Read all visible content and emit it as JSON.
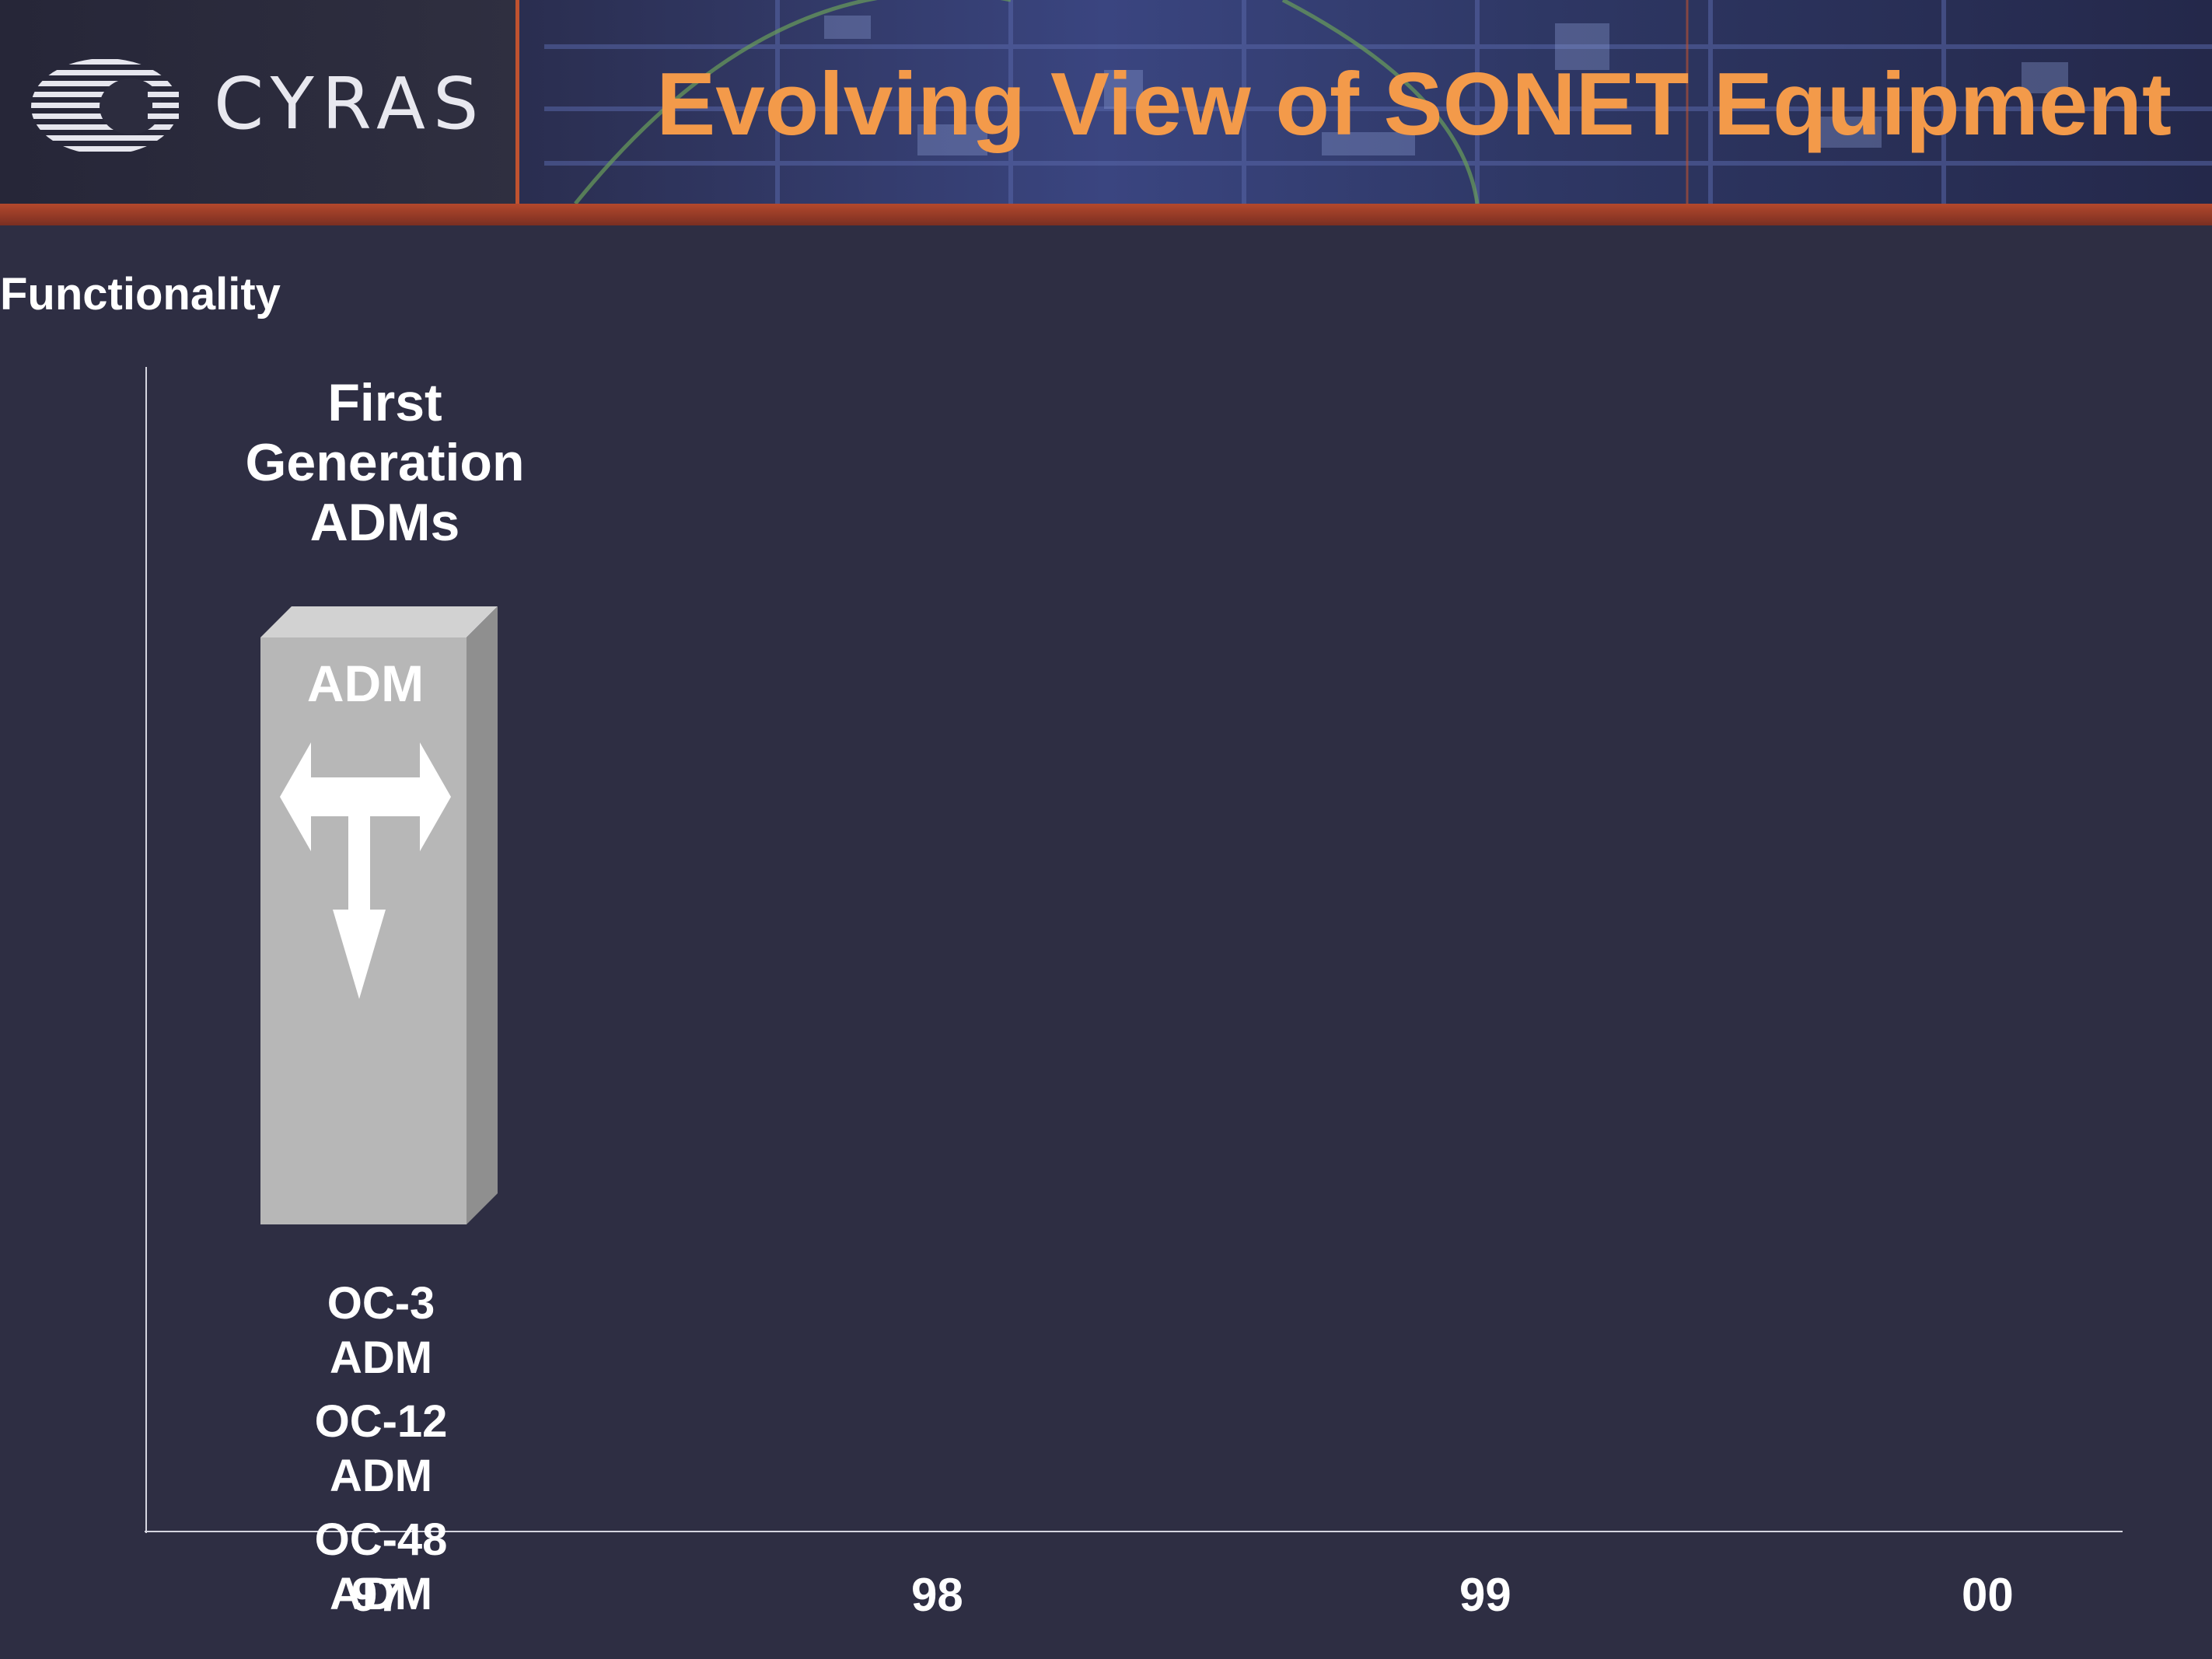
{
  "header": {
    "logo_text": "CYRAS",
    "title": "Evolving View of SONET Equipment"
  },
  "axis": {
    "y_label": "Functionality",
    "x_ticks": [
      "97",
      "98",
      "99",
      "00"
    ]
  },
  "generation": {
    "title_lines": [
      "First",
      "Generation",
      "ADMs"
    ],
    "device_label": "ADM"
  },
  "devices": [
    [
      "OC-3",
      "ADM"
    ],
    [
      "OC-12",
      "ADM"
    ],
    [
      "OC-48",
      "ADM"
    ]
  ],
  "colors": {
    "background": "#2e2e43",
    "title": "#f39a4a",
    "text": "#ffffff",
    "block_front": "#b7b7b7",
    "block_side": "#8f8f8f",
    "block_top": "#d2d2d2",
    "header_accent": "#c0522f"
  },
  "icons": [
    "cyras-logo-icon",
    "add-drop-arrow-icon"
  ]
}
